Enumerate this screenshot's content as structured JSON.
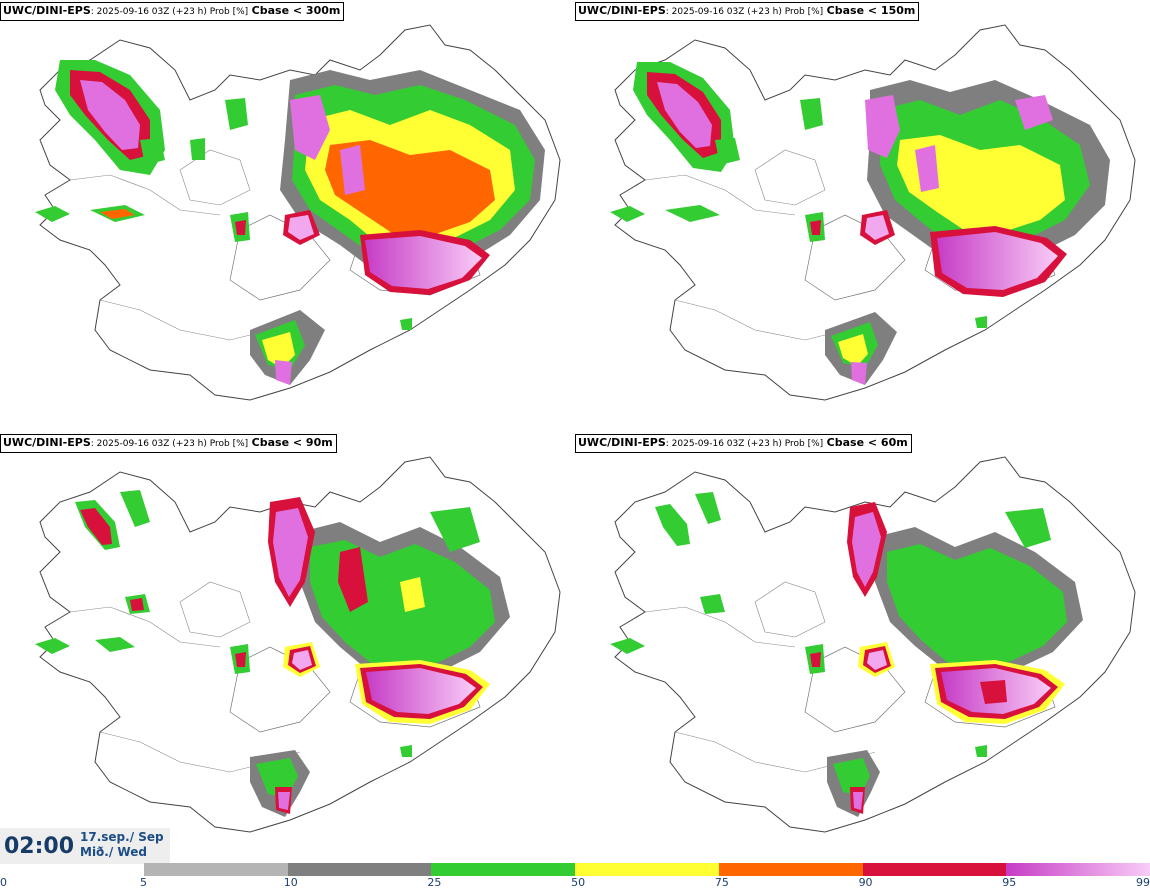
{
  "panels": [
    {
      "model": "UWC/DINI-EPS",
      "meta": ": 2025-09-16 03Z (+23 h) Prob [%]",
      "threshold": "Cbase < 300m"
    },
    {
      "model": "UWC/DINI-EPS",
      "meta": ": 2025-09-16 03Z (+23 h) Prob [%]",
      "threshold": "Cbase < 150m"
    },
    {
      "model": "UWC/DINI-EPS",
      "meta": ": 2025-09-16 03Z (+23 h) Prob [%]",
      "threshold": "Cbase < 90m"
    },
    {
      "model": "UWC/DINI-EPS",
      "meta": ": 2025-09-16 03Z (+23 h) Prob [%]",
      "threshold": "Cbase < 60m"
    }
  ],
  "time": {
    "clock": "02:00",
    "date": "17.sep./ Sep",
    "day": "Mið./ Wed"
  },
  "colorbar": {
    "ticks": [
      "0",
      "5",
      "10",
      "25",
      "50",
      "75",
      "90",
      "95",
      "99"
    ],
    "colors": [
      "#ffffff",
      "#b4b4b4",
      "#7f7f7f",
      "#33cc33",
      "#ffff33",
      "#ff6600",
      "#d8103c",
      "#cc33cc"
    ]
  }
}
